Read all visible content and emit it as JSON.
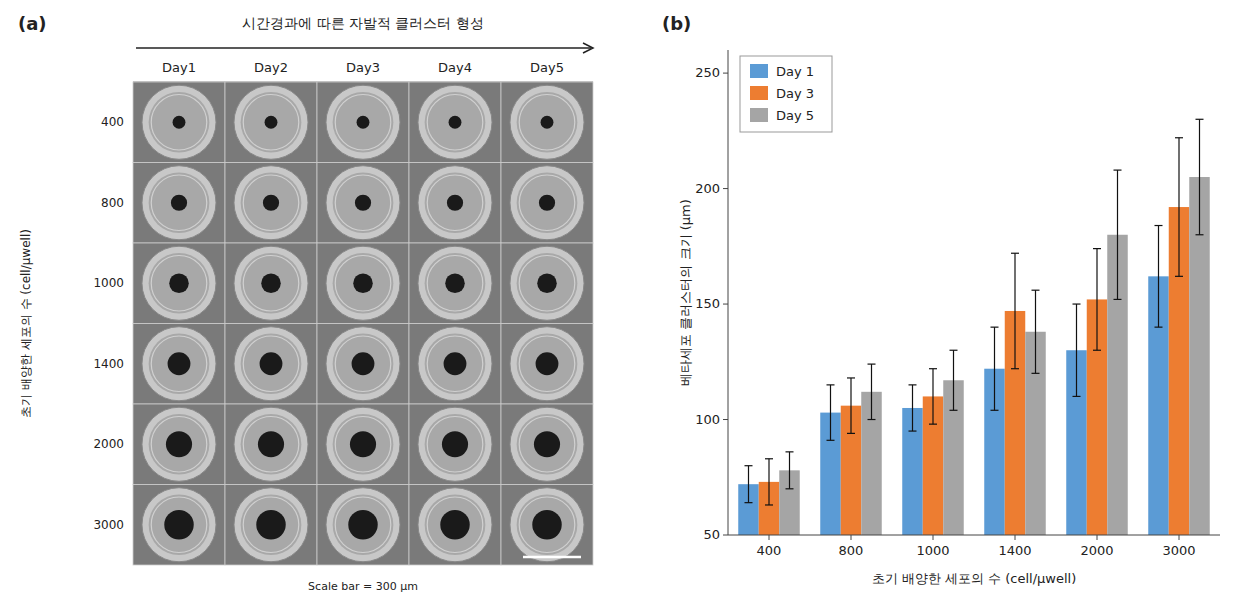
{
  "chart_data": [
    {
      "type": "image_grid",
      "title": "시간경과에 따른 자발적 클러스터 형성",
      "categories": [
        "Day1",
        "Day2",
        "Day3",
        "Day4",
        "Day5"
      ],
      "rows": [
        "400",
        "800",
        "1000",
        "1400",
        "2000",
        "3000"
      ],
      "ylabel": "초기 배양한 세포의 수 (cell/μwell)",
      "annotations": [
        "(a)",
        "Scale bar = 300 μm"
      ]
    },
    {
      "type": "bar",
      "categories": [
        400,
        800,
        1000,
        1400,
        2000,
        3000
      ],
      "series": [
        {
          "name": "Day 1",
          "color": "#5B9BD5",
          "values": [
            72,
            103,
            105,
            122,
            130,
            162
          ],
          "errors": [
            8,
            12,
            10,
            18,
            20,
            22
          ]
        },
        {
          "name": "Day 3",
          "color": "#ED7D31",
          "values": [
            73,
            106,
            110,
            147,
            152,
            192
          ],
          "errors": [
            10,
            12,
            12,
            25,
            22,
            30
          ]
        },
        {
          "name": "Day 5",
          "color": "#A5A5A5",
          "values": [
            78,
            112,
            117,
            138,
            180,
            205
          ],
          "errors": [
            8,
            12,
            13,
            18,
            28,
            25
          ]
        }
      ],
      "ylim": [
        50,
        260
      ],
      "yticks": [
        50,
        100,
        150,
        200,
        250
      ],
      "ylabel": "베타세포 클러스터의 크기 (μm)",
      "xlabel": "초기 배양한 세포의 수 (cell/μwell)",
      "legend": "upper left",
      "grid": false,
      "annotations": [
        "(b)"
      ]
    }
  ]
}
